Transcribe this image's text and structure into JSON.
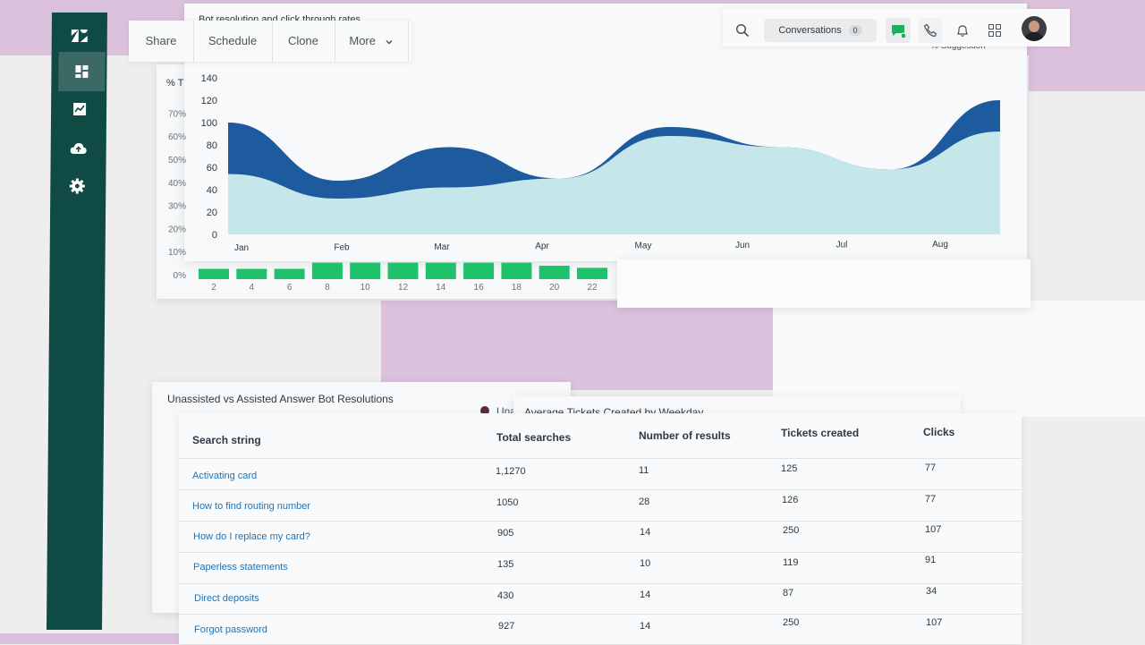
{
  "colors": {
    "sidebar": "#0f4a44",
    "sidebar_active": "#3c6963",
    "area_dark": "#1d5b9e",
    "area_light": "#c6e7ea",
    "bar_green": "#1fc26b",
    "link": "#1f73b7",
    "background_pink": "#dcc1dc",
    "chat_green": "#1fae5c"
  },
  "sidebar": {
    "icons": [
      "zendesk-logo-icon",
      "dashboard-icon",
      "trend-chart-icon",
      "cloud-upload-icon",
      "gear-icon"
    ]
  },
  "toolbar": {
    "share": "Share",
    "schedule": "Schedule",
    "clone": "Clone",
    "more": "More"
  },
  "topbar": {
    "conversations_label": "Conversations",
    "conversations_count": "0",
    "icons": [
      "search-icon",
      "chat-icon",
      "phone-icon",
      "bell-icon",
      "apps-grid-icon",
      "avatar"
    ]
  },
  "bot_panel": {
    "title": "Bot resolution and click through rates",
    "legend_fragment": "% Suggestion",
    "left_title_fragment": "% T"
  },
  "chart_data": [
    {
      "type": "area",
      "title": "",
      "x": [
        "Jan",
        "Feb",
        "Mar",
        "Apr",
        "May",
        "Jun",
        "Jul",
        "Aug"
      ],
      "yticks": [
        0,
        20,
        40,
        60,
        80,
        100,
        120,
        140
      ],
      "ylim": [
        0,
        140
      ],
      "grid": false,
      "series": [
        {
          "values": [
            100,
            48,
            78,
            50,
            96,
            78,
            58,
            120
          ]
        },
        {
          "values": [
            54,
            32,
            42,
            50,
            88,
            78,
            58,
            92
          ]
        }
      ]
    },
    {
      "type": "bar",
      "title": "",
      "categories": [
        "2",
        "4",
        "6",
        "8",
        "10",
        "12",
        "14",
        "16",
        "18",
        "20",
        "22"
      ],
      "values": [
        10,
        10,
        10,
        16,
        16,
        16,
        16,
        16,
        16,
        13,
        11
      ],
      "yticks": [
        "0%",
        "10%",
        "20%",
        "30%",
        "40%",
        "50%",
        "60%",
        "70%"
      ]
    }
  ],
  "unassisted_panel": {
    "title": "Unassisted vs Assisted Answer Bot Resolutions",
    "legend_fragment": "Una"
  },
  "weekday_panel": {
    "title": "Average Tickets Created by Weekday"
  },
  "table": {
    "headers": [
      "Search string",
      "Total searches",
      "Number of results",
      "Tickets created",
      "Clicks"
    ],
    "rows": [
      [
        "Activating card",
        "1,1270",
        "11",
        "125",
        "77"
      ],
      [
        "How to find routing number",
        "1050",
        "28",
        "126",
        "77"
      ],
      [
        "How do I replace my card?",
        "905",
        "14",
        "250",
        "107"
      ],
      [
        "Paperless statements",
        "135",
        "10",
        "119",
        "91"
      ],
      [
        "Direct deposits",
        "430",
        "14",
        "87",
        "34"
      ],
      [
        "Forgot password",
        "927",
        "14",
        "250",
        "107"
      ]
    ]
  }
}
